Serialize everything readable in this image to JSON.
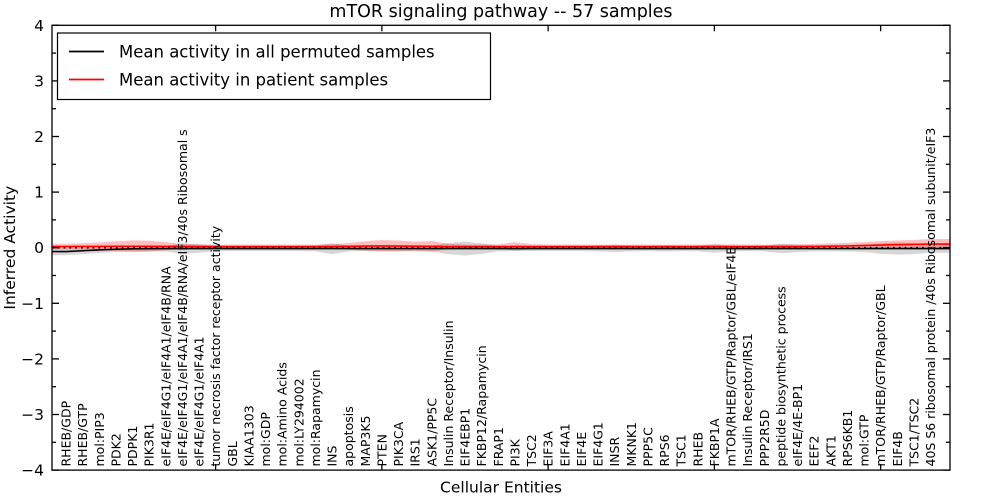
{
  "chart_data": {
    "type": "line",
    "title": "mTOR signaling pathway -- 57 samples",
    "xlabel": "Cellular Entities",
    "ylabel": "Inferred Activity",
    "ylim": [
      -4,
      4
    ],
    "yticks": [
      4,
      3,
      2,
      1,
      0,
      -1,
      -2,
      -3,
      -4
    ],
    "x_major_tick_positions": [
      10,
      20,
      30,
      40,
      50
    ],
    "grid": false,
    "legend_position": "upper left",
    "legend": [
      {
        "label": "Mean activity in all permuted samples",
        "color": "#000000"
      },
      {
        "label": "Mean activity in patient samples",
        "color": "#ff0000"
      }
    ],
    "categories": [
      "RHEB/GDP",
      "RHEB/GTP",
      "mol:PIP3",
      "PDK2",
      "PDPK1",
      "PIK3R1",
      "eIF4E/eIF4G1/eIF4A1/eIF4B/RNA",
      "eIF4E/eIF4G1/eIF4A1/eIF4B/RNA/eIF3/40s Ribosomal s",
      "eIF4E/eIF4G1/eIF4A1",
      "tumor necrosis factor receptor activity",
      "GBL",
      "KIAA1303",
      "mol:GDP",
      "mol:Amino Acids",
      "mol:LY294002",
      "mol:Rapamycin",
      "INS",
      "apoptosis",
      "MAP3K5",
      "PTEN",
      "PIK3CA",
      "IRS1",
      "ASK1/PP5C",
      "Insulin Receptor/Insulin",
      "EIF4EBP1",
      "FKBP12/Rapamycin",
      "FRAP1",
      "PI3K",
      "TSC2",
      "EIF3A",
      "EIF4A1",
      "EIF4E",
      "EIF4G1",
      "INSR",
      "MKNK1",
      "PPP5C",
      "RPS6",
      "TSC1",
      "RHEB",
      "FKBP1A",
      "mTOR/RHEB/GTP/Raptor/GBL/eIF4E",
      "Insulin Receptor/IRS1",
      "PPP2R5D",
      "peptide biosynthetic process",
      "eIF4E/4E-BP1",
      "EEF2",
      "AKT1",
      "RPS6KB1",
      "mol:GTP",
      "mTOR/RHEB/GTP/Raptor/GBL",
      "EIF4B",
      "TSC1/TSC2",
      "40S S6 ribosomal protein /40s Ribosomal subunit/eIF3"
    ],
    "series": [
      {
        "name": "Mean activity in all permuted samples",
        "color": "#000000",
        "band_color": "rgba(0,0,0,0.16)",
        "values": [
          -0.07,
          -0.055,
          -0.04,
          -0.028,
          -0.02,
          -0.018,
          -0.016,
          -0.016,
          -0.015,
          -0.015,
          -0.015,
          -0.015,
          -0.015,
          -0.015,
          -0.015,
          -0.015,
          -0.015,
          -0.015,
          -0.015,
          -0.015,
          -0.015,
          -0.015,
          -0.015,
          -0.015,
          -0.015,
          -0.015,
          -0.015,
          -0.015,
          -0.015,
          -0.015,
          -0.015,
          -0.015,
          -0.015,
          -0.015,
          -0.015,
          -0.015,
          -0.015,
          -0.015,
          -0.015,
          -0.015,
          -0.015,
          -0.015,
          -0.015,
          -0.015,
          -0.015,
          -0.015,
          -0.015,
          -0.015,
          -0.015,
          -0.015,
          -0.015,
          -0.015,
          -0.015
        ],
        "band_halfwidth": [
          0.065,
          0.06,
          0.055,
          0.05,
          0.045,
          0.045,
          0.05,
          0.095,
          0.075,
          0.05,
          0.045,
          0.045,
          0.045,
          0.045,
          0.045,
          0.05,
          0.1,
          0.05,
          0.045,
          0.045,
          0.045,
          0.05,
          0.055,
          0.1,
          0.125,
          0.095,
          0.05,
          0.045,
          0.045,
          0.045,
          0.045,
          0.045,
          0.05,
          0.065,
          0.05,
          0.045,
          0.055,
          0.045,
          0.05,
          0.075,
          0.05,
          0.045,
          0.05,
          0.085,
          0.065,
          0.05,
          0.05,
          0.055,
          0.06,
          0.095,
          0.11,
          0.1,
          0.075
        ]
      },
      {
        "name": "Mean activity in patient samples",
        "color": "#ff0000",
        "band_color": "rgba(255,0,0,0.25)",
        "values": [
          0.02,
          0.022,
          0.024,
          0.026,
          0.026,
          0.025,
          0.024,
          0.022,
          0.02,
          0.02,
          0.02,
          0.02,
          0.02,
          0.02,
          0.02,
          0.02,
          0.02,
          0.025,
          0.03,
          0.032,
          0.03,
          0.027,
          0.025,
          0.02,
          0.02,
          0.02,
          0.02,
          0.022,
          0.02,
          0.02,
          0.02,
          0.02,
          0.02,
          0.02,
          0.02,
          0.02,
          0.02,
          0.02,
          0.02,
          0.02,
          0.02,
          0.02,
          0.02,
          0.02,
          0.02,
          0.024,
          0.028,
          0.033,
          0.04,
          0.048,
          0.055,
          0.06,
          0.066
        ],
        "band_halfwidth": [
          0.05,
          0.06,
          0.07,
          0.09,
          0.105,
          0.1,
          0.075,
          0.05,
          0.04,
          0.035,
          0.035,
          0.035,
          0.035,
          0.035,
          0.035,
          0.035,
          0.04,
          0.06,
          0.085,
          0.105,
          0.1,
          0.08,
          0.095,
          0.05,
          0.035,
          0.035,
          0.04,
          0.075,
          0.045,
          0.035,
          0.035,
          0.035,
          0.035,
          0.035,
          0.035,
          0.035,
          0.035,
          0.035,
          0.035,
          0.04,
          0.04,
          0.035,
          0.035,
          0.04,
          0.04,
          0.045,
          0.05,
          0.055,
          0.06,
          0.07,
          0.075,
          0.08,
          0.09
        ]
      }
    ],
    "zero_line": {
      "style": "dotted",
      "color": "#000000",
      "y": 0
    }
  },
  "colors": {
    "axis": "#000000",
    "background": "#ffffff"
  }
}
